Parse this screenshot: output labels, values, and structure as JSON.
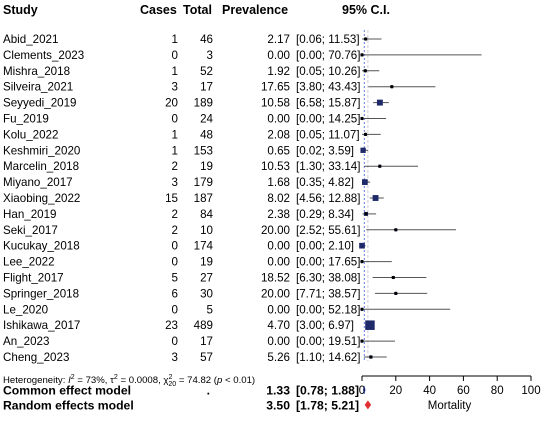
{
  "headers": {
    "study": "Study",
    "cases": "Cases",
    "total": "Total",
    "prevalence": "Prevalence",
    "ci": "95% C.I."
  },
  "chart_data": {
    "type": "forest",
    "studies": [
      {
        "name": "Abid_2021",
        "cases": 1,
        "total": 46,
        "prev": 2.17,
        "lo": 0.06,
        "hi": 11.53,
        "ci_text": "[0.06; 11.53]"
      },
      {
        "name": "Clements_2023",
        "cases": 0,
        "total": 3,
        "prev": 0.0,
        "lo": 0.0,
        "hi": 70.76,
        "ci_text": "[0.00; 70.76]"
      },
      {
        "name": "Mishra_2018",
        "cases": 1,
        "total": 52,
        "prev": 1.92,
        "lo": 0.05,
        "hi": 10.26,
        "ci_text": "[0.05; 10.26]"
      },
      {
        "name": "Silveira_2021",
        "cases": 3,
        "total": 17,
        "prev": 17.65,
        "lo": 3.8,
        "hi": 43.43,
        "ci_text": "[3.80; 43.43]"
      },
      {
        "name": "Seyyedi_2019",
        "cases": 20,
        "total": 189,
        "prev": 10.58,
        "lo": 6.58,
        "hi": 15.87,
        "ci_text": "[6.58; 15.87]"
      },
      {
        "name": "Fu_2019",
        "cases": 0,
        "total": 24,
        "prev": 0.0,
        "lo": 0.0,
        "hi": 14.25,
        "ci_text": "[0.00; 14.25]"
      },
      {
        "name": "Kolu_2022",
        "cases": 1,
        "total": 48,
        "prev": 2.08,
        "lo": 0.05,
        "hi": 11.07,
        "ci_text": "[0.05; 11.07]"
      },
      {
        "name": "Keshmiri_2020",
        "cases": 1,
        "total": 153,
        "prev": 0.65,
        "lo": 0.02,
        "hi": 3.59,
        "ci_text": "[0.02; 3.59]"
      },
      {
        "name": "Marcelin_2018",
        "cases": 2,
        "total": 19,
        "prev": 10.53,
        "lo": 1.3,
        "hi": 33.14,
        "ci_text": "[1.30; 33.14]"
      },
      {
        "name": "Miyano_2017",
        "cases": 3,
        "total": 179,
        "prev": 1.68,
        "lo": 0.35,
        "hi": 4.82,
        "ci_text": "[0.35; 4.82]"
      },
      {
        "name": "Xiaobing_2022",
        "cases": 15,
        "total": 187,
        "prev": 8.02,
        "lo": 4.56,
        "hi": 12.88,
        "ci_text": "[4.56; 12.88]"
      },
      {
        "name": "Han_2019",
        "cases": 2,
        "total": 84,
        "prev": 2.38,
        "lo": 0.29,
        "hi": 8.34,
        "ci_text": "[0.29; 8.34]"
      },
      {
        "name": "Seki_2017",
        "cases": 2,
        "total": 10,
        "prev": 20.0,
        "lo": 2.52,
        "hi": 55.61,
        "ci_text": "[2.52; 55.61]"
      },
      {
        "name": "Kucukay_2018",
        "cases": 0,
        "total": 174,
        "prev": 0.0,
        "lo": 0.0,
        "hi": 2.1,
        "ci_text": "[0.00; 2.10]"
      },
      {
        "name": "Lee_2022",
        "cases": 0,
        "total": 19,
        "prev": 0.0,
        "lo": 0.0,
        "hi": 17.65,
        "ci_text": "[0.00; 17.65]"
      },
      {
        "name": "Flight_2017",
        "cases": 5,
        "total": 27,
        "prev": 18.52,
        "lo": 6.3,
        "hi": 38.08,
        "ci_text": "[6.30; 38.08]"
      },
      {
        "name": "Springer_2018",
        "cases": 6,
        "total": 30,
        "prev": 20.0,
        "lo": 7.71,
        "hi": 38.57,
        "ci_text": "[7.71; 38.57]"
      },
      {
        "name": "Le_2020",
        "cases": 0,
        "total": 5,
        "prev": 0.0,
        "lo": 0.0,
        "hi": 52.18,
        "ci_text": "[0.00; 52.18]"
      },
      {
        "name": "Ishikawa_2017",
        "cases": 23,
        "total": 489,
        "prev": 4.7,
        "lo": 3.0,
        "hi": 6.97,
        "ci_text": "[3.00; 6.97]"
      },
      {
        "name": "An_2023",
        "cases": 0,
        "total": 17,
        "prev": 0.0,
        "lo": 0.0,
        "hi": 19.51,
        "ci_text": "[0.00; 19.51]"
      },
      {
        "name": "Cheng_2023",
        "cases": 3,
        "total": 57,
        "prev": 5.26,
        "lo": 1.1,
        "hi": 14.62,
        "ci_text": "[1.10; 14.62]"
      }
    ],
    "models": [
      {
        "name": "Common effect model",
        "dot": ".",
        "prev_text": "1.33",
        "ci_text": "[0.78;  1.88]",
        "prev": 1.33,
        "lo": 0.78,
        "hi": 1.88,
        "color": "#3b5bdb"
      },
      {
        "name": "Random effects model",
        "dot": "",
        "prev_text": "3.50",
        "ci_text": "[1.78;  5.21]",
        "prev": 3.5,
        "lo": 1.78,
        "hi": 5.21,
        "color": "#e03131"
      }
    ],
    "heterogeneity": {
      "prefix": "Heterogeneity: ",
      "i2_label": "I",
      "i2_value": " = 73%, ",
      "tau_label": "τ",
      "tau_value": " = 0.0008, ",
      "chi_label": "χ",
      "chi_sub": "20",
      "chi_value": " = 74.82 (",
      "p_label": "p",
      "p_value": " < 0.01)"
    },
    "x_axis": {
      "ticks": [
        0,
        20,
        40,
        60,
        80,
        100
      ],
      "range": [
        0,
        100
      ],
      "label": "Mortality"
    },
    "colors": {
      "square": "#1f2a6b",
      "line": "#555555",
      "common_ref": "#3b5bdb",
      "random_ref": "#c0c0c0"
    }
  }
}
